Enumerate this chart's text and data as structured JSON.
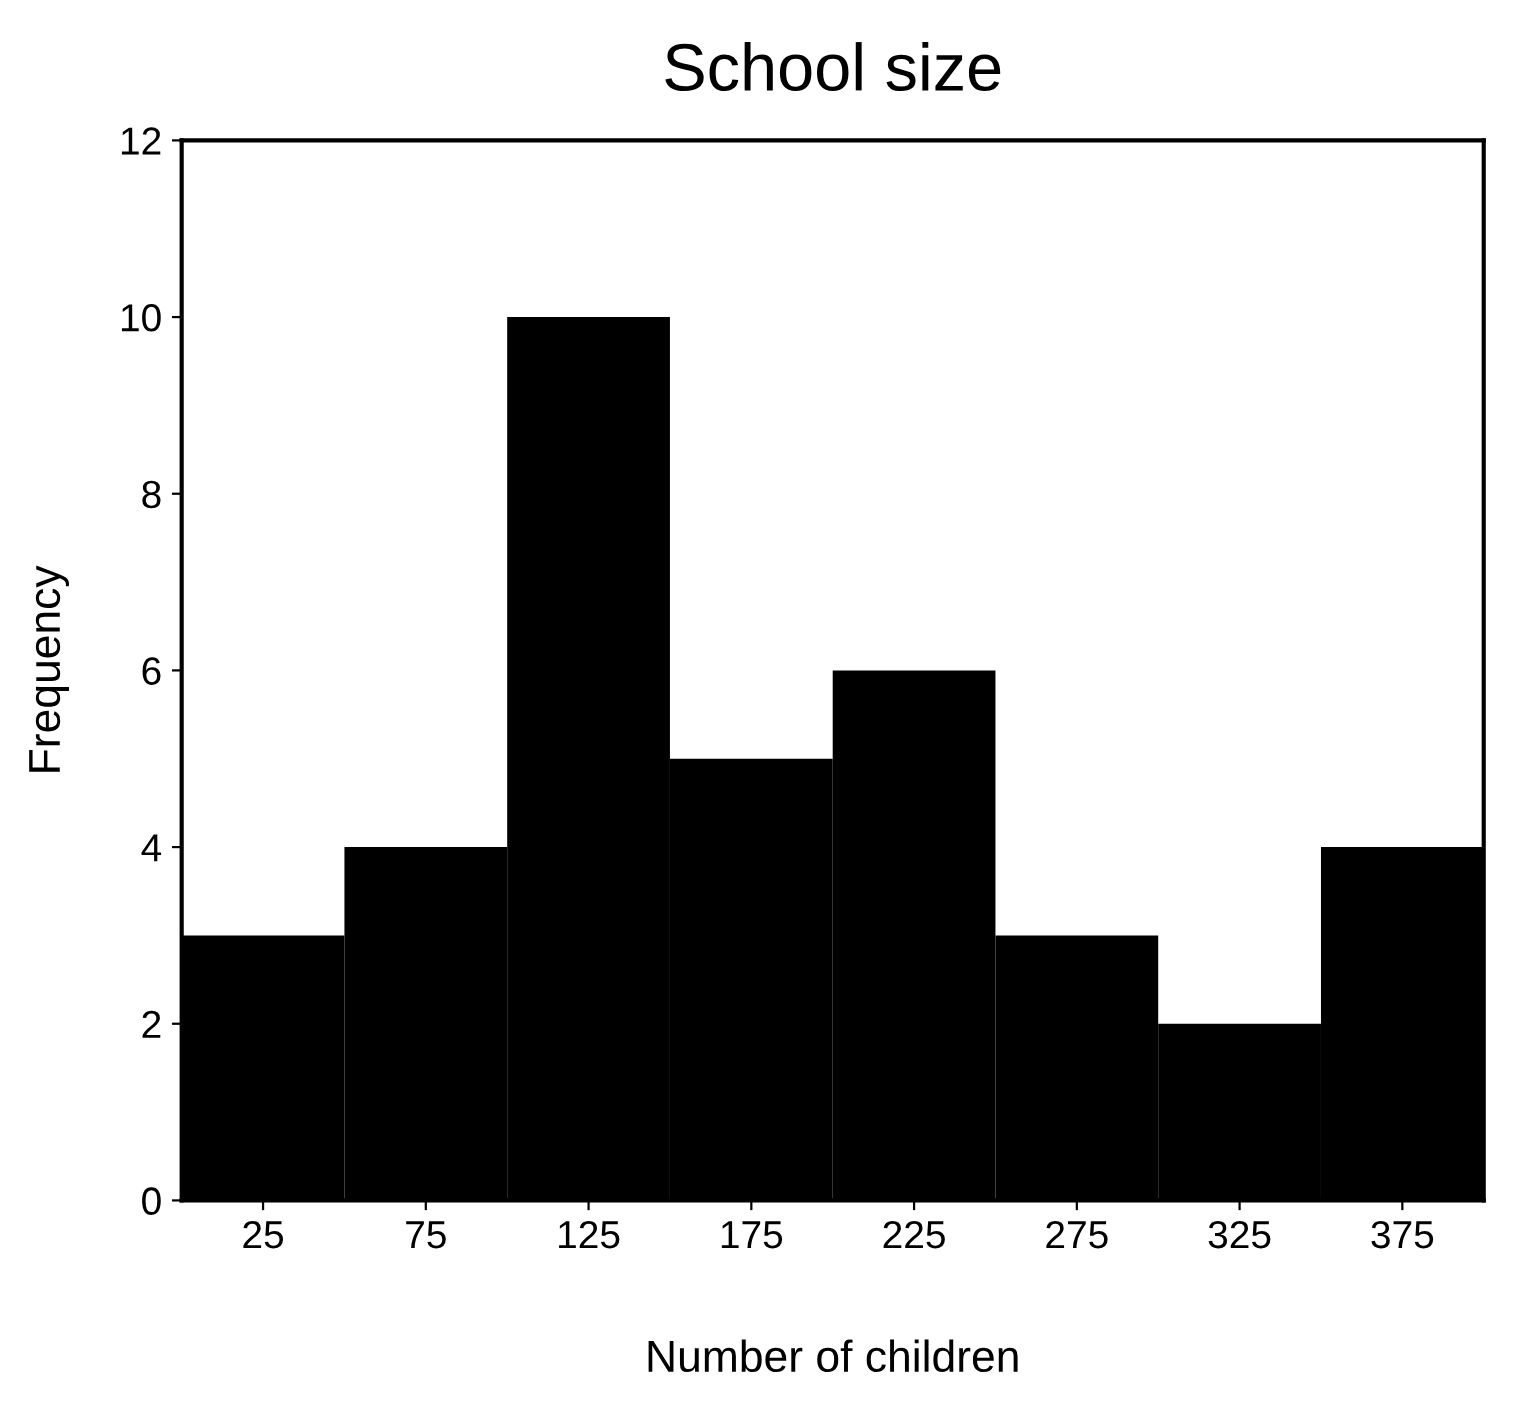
{
  "chart_data": {
    "type": "histogram",
    "title": "School size",
    "xlabel": "Number of children",
    "ylabel": "Frequency",
    "bins": [
      0,
      50,
      100,
      150,
      200,
      250,
      300,
      350,
      400
    ],
    "values": [
      3,
      4,
      10,
      5,
      6,
      3,
      2,
      4
    ],
    "color": "#000000",
    "xlim": [
      0,
      400
    ],
    "xticks": [
      25,
      75,
      125,
      175,
      225,
      275,
      325,
      375
    ],
    "ylim": [
      0,
      12
    ],
    "yticks": [
      0,
      2,
      4,
      6,
      8,
      10,
      12
    ],
    "grid": false
  }
}
